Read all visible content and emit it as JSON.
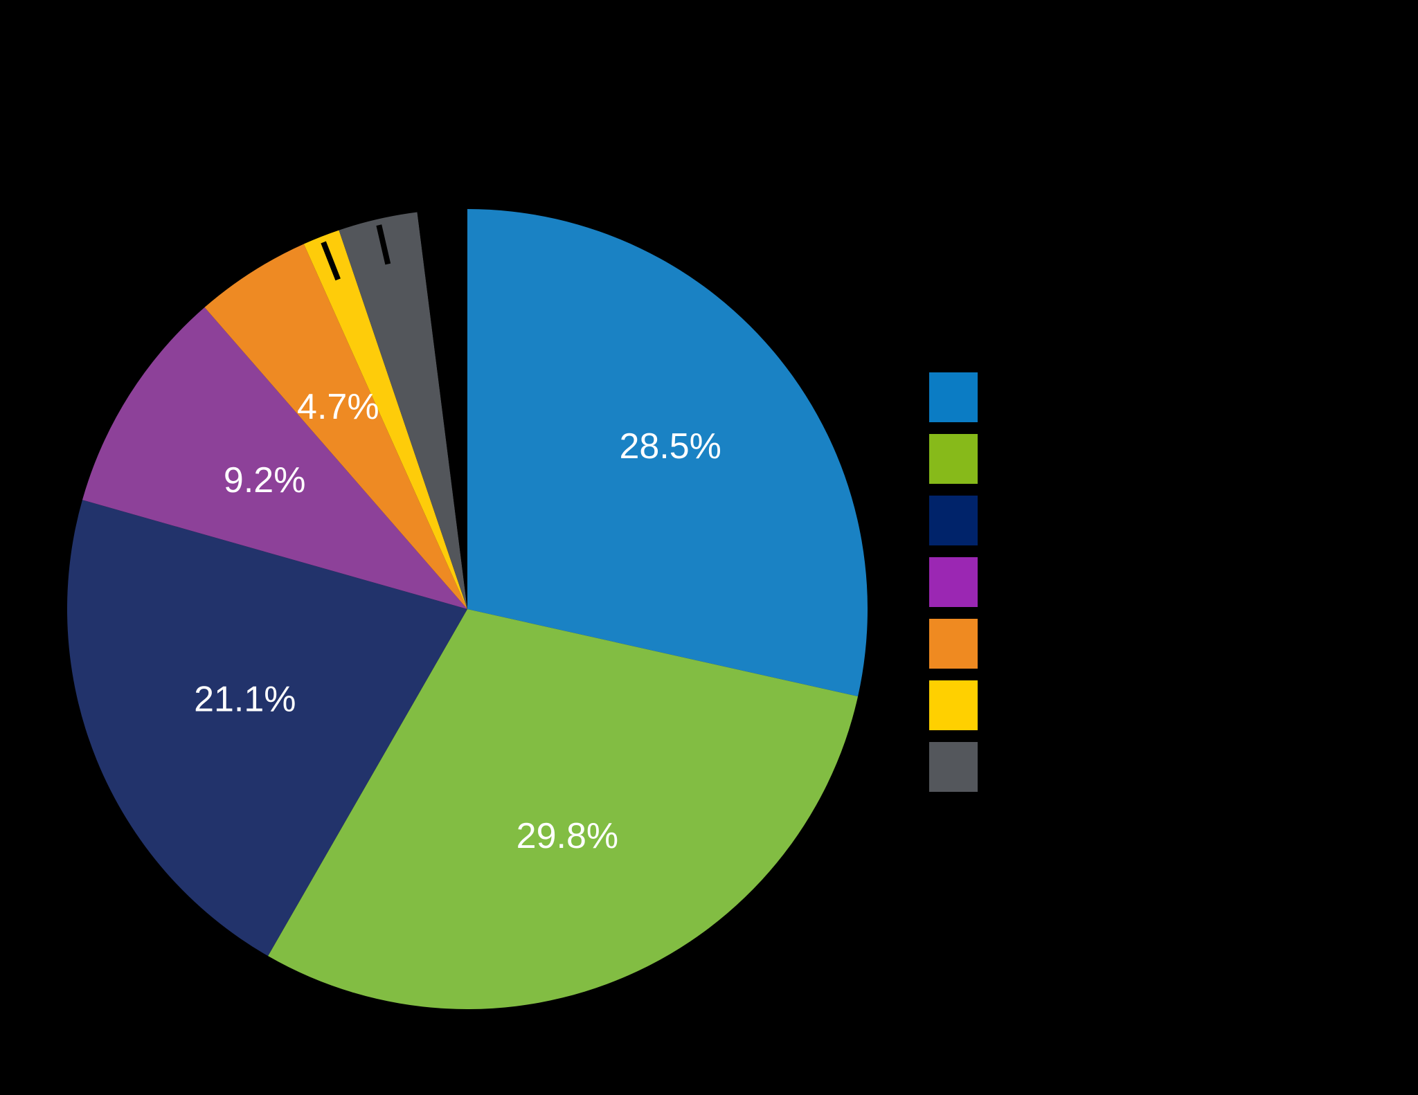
{
  "chart_data": {
    "type": "pie",
    "start_angle_deg": 0,
    "direction": "clockwise",
    "legend_position": "right",
    "slices": [
      {
        "value": 28.5,
        "label": "28.5%",
        "color": "#1A82C4"
      },
      {
        "value": 29.8,
        "label": "29.8%",
        "color": "#82BD43"
      },
      {
        "value": 21.1,
        "label": "21.1%",
        "color": "#22336B"
      },
      {
        "value": 9.2,
        "label": "9.2%",
        "color": "#8D4199"
      },
      {
        "value": 4.7,
        "label": "4.7%",
        "color": "#EE8A23"
      },
      {
        "value": 1.5,
        "label": "",
        "color": "#FECC0A"
      },
      {
        "value": 3.2,
        "label": "",
        "color": "#53565B"
      },
      {
        "value": 2.0,
        "label": "",
        "color": "#000000"
      }
    ],
    "leader_lines": [
      {
        "slice": 5
      },
      {
        "slice": 6
      }
    ],
    "legend_swatches": [
      {
        "color": "#0B7CC4"
      },
      {
        "color": "#87BA1A"
      },
      {
        "color": "#00236A"
      },
      {
        "color": "#9B27B3"
      },
      {
        "color": "#EF8A21"
      },
      {
        "color": "#FFD000"
      },
      {
        "color": "#54575C"
      }
    ]
  }
}
